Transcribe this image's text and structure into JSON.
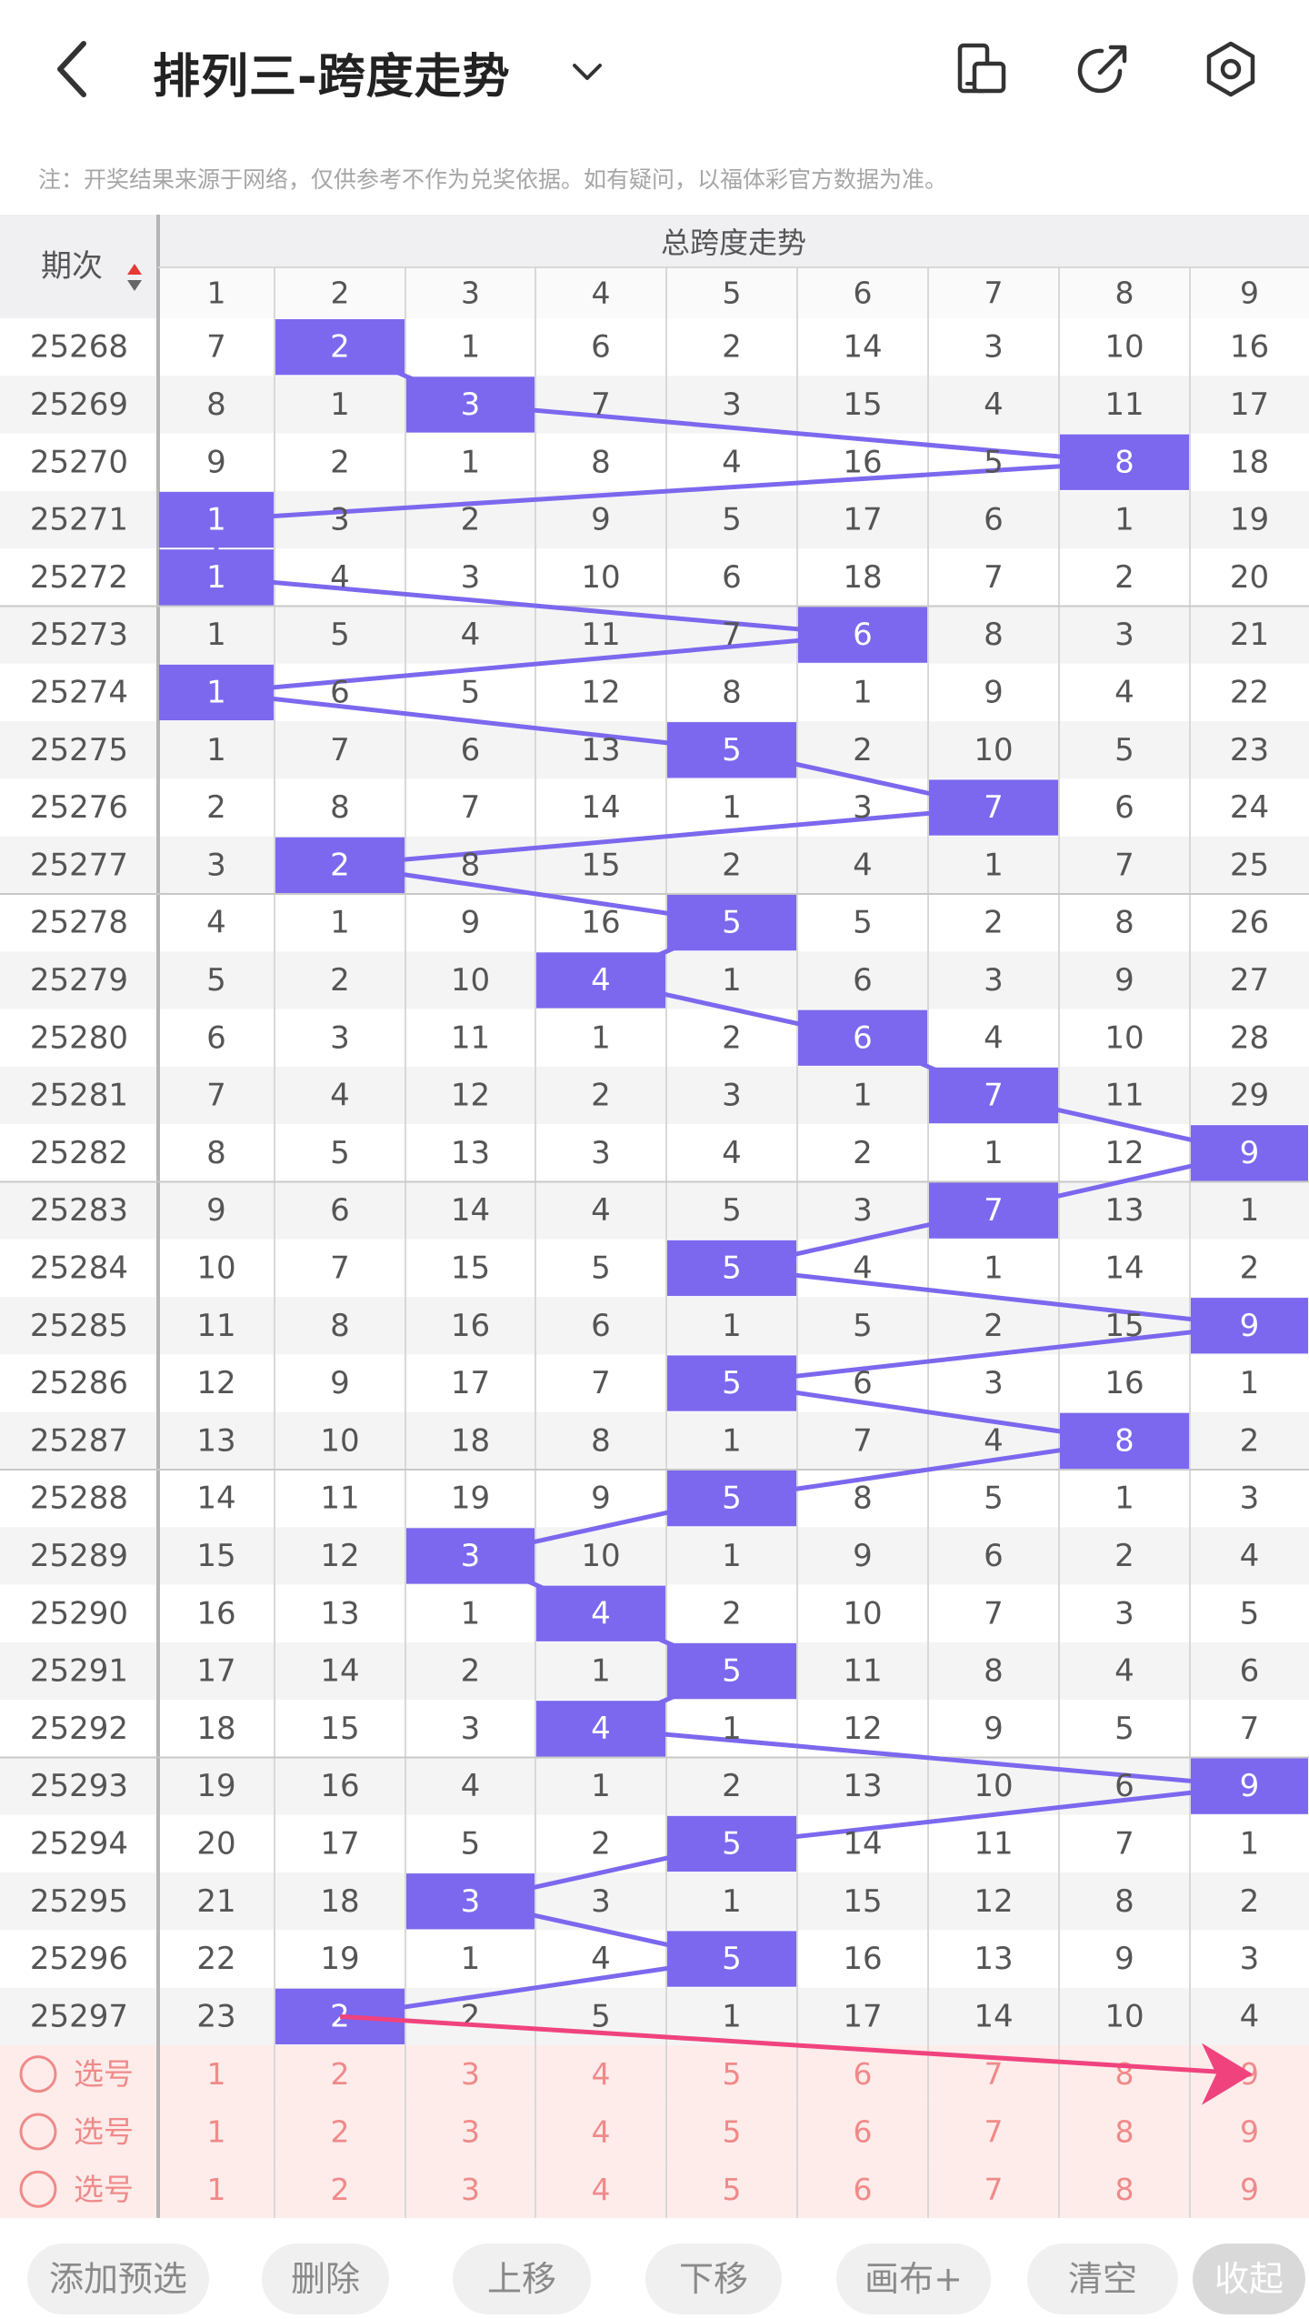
{
  "header": {
    "title": "排列三-跨度走势",
    "back_icon": "chevron-left-icon",
    "dropdown_icon": "chevron-down-icon",
    "actions": [
      {
        "name": "layout-toggle-icon"
      },
      {
        "name": "share-icon"
      },
      {
        "name": "settings-icon"
      }
    ]
  },
  "notice": "注：开奖结果来源于网络，仅供参考不作为兑奖依据。如有疑问，以福体彩官方数据为准。",
  "table": {
    "period_header": "期次",
    "group_header": "总跨度走势",
    "columns": [
      "1",
      "2",
      "3",
      "4",
      "5",
      "6",
      "7",
      "8",
      "9"
    ],
    "rows": [
      {
        "period": "25268",
        "values": [
          "7",
          "2",
          "1",
          "6",
          "2",
          "14",
          "3",
          "10",
          "16"
        ],
        "hit": 2
      },
      {
        "period": "25269",
        "values": [
          "8",
          "1",
          "3",
          "7",
          "3",
          "15",
          "4",
          "11",
          "17"
        ],
        "hit": 3
      },
      {
        "period": "25270",
        "values": [
          "9",
          "2",
          "1",
          "8",
          "4",
          "16",
          "5",
          "8",
          "18"
        ],
        "hit": 8
      },
      {
        "period": "25271",
        "values": [
          "1",
          "3",
          "2",
          "9",
          "5",
          "17",
          "6",
          "1",
          "19"
        ],
        "hit": 1
      },
      {
        "period": "25272",
        "values": [
          "1",
          "4",
          "3",
          "10",
          "6",
          "18",
          "7",
          "2",
          "20"
        ],
        "hit": 1
      },
      {
        "period": "25273",
        "values": [
          "1",
          "5",
          "4",
          "11",
          "7",
          "6",
          "8",
          "3",
          "21"
        ],
        "hit": 6
      },
      {
        "period": "25274",
        "values": [
          "1",
          "6",
          "5",
          "12",
          "8",
          "1",
          "9",
          "4",
          "22"
        ],
        "hit": 1
      },
      {
        "period": "25275",
        "values": [
          "1",
          "7",
          "6",
          "13",
          "5",
          "2",
          "10",
          "5",
          "23"
        ],
        "hit": 5
      },
      {
        "period": "25276",
        "values": [
          "2",
          "8",
          "7",
          "14",
          "1",
          "3",
          "7",
          "6",
          "24"
        ],
        "hit": 7
      },
      {
        "period": "25277",
        "values": [
          "3",
          "2",
          "8",
          "15",
          "2",
          "4",
          "1",
          "7",
          "25"
        ],
        "hit": 2
      },
      {
        "period": "25278",
        "values": [
          "4",
          "1",
          "9",
          "16",
          "5",
          "5",
          "2",
          "8",
          "26"
        ],
        "hit": 5
      },
      {
        "period": "25279",
        "values": [
          "5",
          "2",
          "10",
          "4",
          "1",
          "6",
          "3",
          "9",
          "27"
        ],
        "hit": 4
      },
      {
        "period": "25280",
        "values": [
          "6",
          "3",
          "11",
          "1",
          "2",
          "6",
          "4",
          "10",
          "28"
        ],
        "hit": 6
      },
      {
        "period": "25281",
        "values": [
          "7",
          "4",
          "12",
          "2",
          "3",
          "1",
          "7",
          "11",
          "29"
        ],
        "hit": 7
      },
      {
        "period": "25282",
        "values": [
          "8",
          "5",
          "13",
          "3",
          "4",
          "2",
          "1",
          "12",
          "9"
        ],
        "hit": 9
      },
      {
        "period": "25283",
        "values": [
          "9",
          "6",
          "14",
          "4",
          "5",
          "3",
          "7",
          "13",
          "1"
        ],
        "hit": 7
      },
      {
        "period": "25284",
        "values": [
          "10",
          "7",
          "15",
          "5",
          "5",
          "4",
          "1",
          "14",
          "2"
        ],
        "hit": 5
      },
      {
        "period": "25285",
        "values": [
          "11",
          "8",
          "16",
          "6",
          "1",
          "5",
          "2",
          "15",
          "9"
        ],
        "hit": 9
      },
      {
        "period": "25286",
        "values": [
          "12",
          "9",
          "17",
          "7",
          "5",
          "6",
          "3",
          "16",
          "1"
        ],
        "hit": 5
      },
      {
        "period": "25287",
        "values": [
          "13",
          "10",
          "18",
          "8",
          "1",
          "7",
          "4",
          "8",
          "2"
        ],
        "hit": 8
      },
      {
        "period": "25288",
        "values": [
          "14",
          "11",
          "19",
          "9",
          "5",
          "8",
          "5",
          "1",
          "3"
        ],
        "hit": 5
      },
      {
        "period": "25289",
        "values": [
          "15",
          "12",
          "3",
          "10",
          "1",
          "9",
          "6",
          "2",
          "4"
        ],
        "hit": 3
      },
      {
        "period": "25290",
        "values": [
          "16",
          "13",
          "1",
          "4",
          "2",
          "10",
          "7",
          "3",
          "5"
        ],
        "hit": 4
      },
      {
        "period": "25291",
        "values": [
          "17",
          "14",
          "2",
          "1",
          "5",
          "11",
          "8",
          "4",
          "6"
        ],
        "hit": 5
      },
      {
        "period": "25292",
        "values": [
          "18",
          "15",
          "3",
          "4",
          "1",
          "12",
          "9",
          "5",
          "7"
        ],
        "hit": 4
      },
      {
        "period": "25293",
        "values": [
          "19",
          "16",
          "4",
          "1",
          "2",
          "13",
          "10",
          "6",
          "9"
        ],
        "hit": 9
      },
      {
        "period": "25294",
        "values": [
          "20",
          "17",
          "5",
          "2",
          "5",
          "14",
          "11",
          "7",
          "1"
        ],
        "hit": 5
      },
      {
        "period": "25295",
        "values": [
          "21",
          "18",
          "3",
          "3",
          "1",
          "15",
          "12",
          "8",
          "2"
        ],
        "hit": 3
      },
      {
        "period": "25296",
        "values": [
          "22",
          "19",
          "1",
          "4",
          "5",
          "16",
          "13",
          "9",
          "3"
        ],
        "hit": 5
      },
      {
        "period": "25297",
        "values": [
          "23",
          "2",
          "2",
          "5",
          "1",
          "17",
          "14",
          "10",
          "4"
        ],
        "hit": 2
      }
    ],
    "pick_label": "选号",
    "pick_rows": 3
  },
  "colors": {
    "hit": "#7B68EE",
    "line": "#7B68EE",
    "arrow": "#F0437E",
    "pick_bg": "#FDECEA",
    "pick_text": "#F08A8A",
    "alt_row": "#F4F4F5",
    "grid": "#D8D8D8"
  },
  "bottom_buttons": [
    "添加预选",
    "删除",
    "上移",
    "下移",
    "画布+",
    "清空",
    "收起"
  ]
}
